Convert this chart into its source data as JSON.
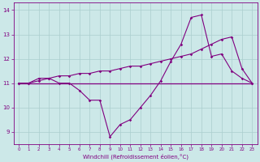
{
  "xlabel": "Windchill (Refroidissement éolien,°C)",
  "x_values": [
    0,
    1,
    2,
    3,
    4,
    5,
    6,
    7,
    8,
    9,
    10,
    11,
    12,
    13,
    14,
    15,
    16,
    17,
    18,
    19,
    20,
    21,
    22,
    23
  ],
  "line1": [
    11.0,
    11.0,
    11.2,
    11.2,
    11.0,
    11.0,
    10.7,
    10.3,
    10.3,
    8.8,
    9.3,
    9.5,
    10.0,
    10.5,
    11.1,
    11.9,
    12.6,
    13.7,
    13.8,
    12.1,
    12.2,
    11.5,
    11.2,
    11.0
  ],
  "line2": [
    11.0,
    11.0,
    11.1,
    11.2,
    11.3,
    11.3,
    11.4,
    11.4,
    11.5,
    11.5,
    11.6,
    11.7,
    11.7,
    11.8,
    11.9,
    12.0,
    12.1,
    12.2,
    12.4,
    12.6,
    12.8,
    12.9,
    11.6,
    11.0
  ],
  "line3": [
    11.0,
    11.0,
    11.0,
    11.0,
    11.0,
    11.0,
    11.0,
    11.0,
    11.0,
    11.0,
    11.0,
    11.0,
    11.0,
    11.0,
    11.0,
    11.0,
    11.0,
    11.0,
    11.0,
    11.0,
    11.0,
    11.0,
    11.0,
    11.0
  ],
  "line_color": "#800080",
  "bg_color": "#cce8e8",
  "grid_color": "#aacece",
  "ylim": [
    8.5,
    14.3
  ],
  "yticks": [
    9,
    10,
    11,
    12,
    13,
    14
  ],
  "xlim": [
    -0.5,
    23.5
  ],
  "figwidth": 3.2,
  "figheight": 2.0,
  "dpi": 100
}
